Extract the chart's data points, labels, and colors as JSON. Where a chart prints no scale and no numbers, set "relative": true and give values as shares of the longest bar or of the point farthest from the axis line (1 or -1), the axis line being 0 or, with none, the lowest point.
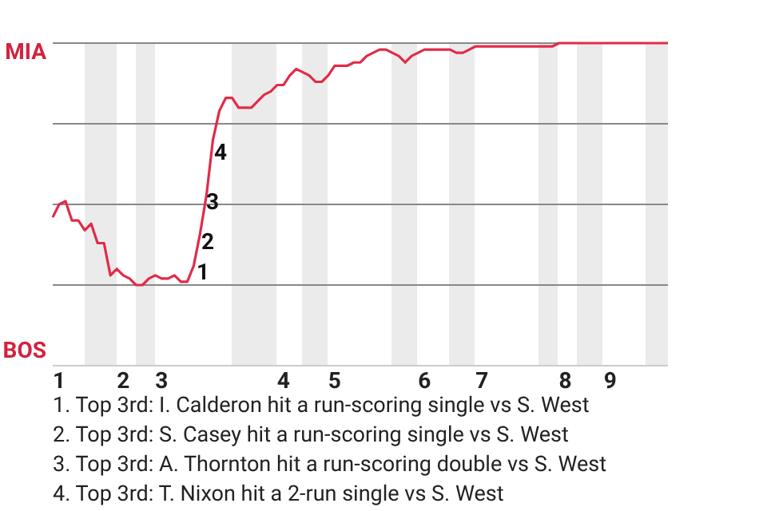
{
  "chart_data": {
    "type": "line",
    "relative": true,
    "categories": [
      null,
      "1",
      null,
      null,
      null,
      null,
      null,
      null,
      null,
      null,
      null,
      "2",
      null,
      null,
      null,
      null,
      null,
      "3",
      null,
      null,
      null,
      null,
      null,
      null,
      null,
      null,
      null,
      null,
      null,
      null,
      null,
      null,
      null,
      null,
      null,
      null,
      "4",
      null,
      null,
      null,
      null,
      null,
      null,
      null,
      "5",
      null,
      null,
      null,
      null,
      null,
      null,
      null,
      null,
      null,
      null,
      null,
      null,
      null,
      "6",
      null,
      null,
      null,
      null,
      null,
      null,
      null,
      null,
      "7",
      null,
      null,
      null,
      null,
      null,
      null,
      null,
      null,
      null,
      null,
      null,
      null,
      "8",
      null,
      null,
      null,
      null,
      null,
      null,
      "9",
      null,
      null,
      null,
      null,
      null,
      null,
      null,
      null,
      null
    ],
    "grid": "y",
    "legend": false,
    "marker": "none",
    "line_style": "solid",
    "series": [
      {
        "color": "#e02c48",
        "values": [
          0.46,
          0.5,
          0.51,
          0.45,
          0.45,
          0.42,
          0.44,
          0.38,
          0.38,
          0.28,
          0.3,
          0.28,
          0.27,
          0.25,
          0.25,
          0.27,
          0.28,
          0.27,
          0.27,
          0.28,
          0.26,
          0.26,
          0.31,
          0.41,
          0.53,
          0.7,
          0.79,
          0.83,
          0.83,
          0.8,
          0.8,
          0.8,
          0.82,
          0.84,
          0.85,
          0.87,
          0.87,
          0.9,
          0.92,
          0.91,
          0.9,
          0.88,
          0.88,
          0.9,
          0.93,
          0.93,
          0.93,
          0.94,
          0.94,
          0.96,
          0.97,
          0.98,
          0.98,
          0.97,
          0.96,
          0.94,
          0.96,
          0.97,
          0.98,
          0.98,
          0.98,
          0.98,
          0.98,
          0.97,
          0.97,
          0.98,
          0.99,
          0.99,
          0.99,
          0.99,
          0.99,
          0.99,
          0.99,
          0.99,
          0.99,
          0.99,
          0.99,
          0.99,
          0.99,
          1,
          1,
          1,
          1,
          1,
          1,
          1,
          1,
          1,
          1,
          1,
          1,
          1,
          1,
          1,
          1,
          1,
          1
        ]
      }
    ],
    "annotations": [
      "MIA",
      "BOS",
      "1",
      "2",
      "3",
      "4",
      "1. Top 3rd: I. Calderon hit a run-scoring single vs S. West",
      "2. Top 3rd: S. Casey hit a run-scoring single vs S. West",
      "3. Top 3rd: A. Thornton hit a run-scoring double vs S. West",
      "4. Top 3rd: T. Nixon hit a 2-run single vs S. West"
    ]
  }
}
